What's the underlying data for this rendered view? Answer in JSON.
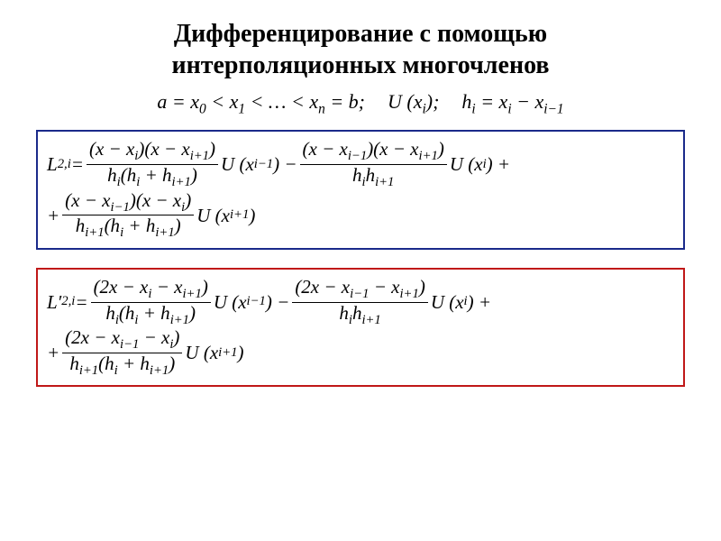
{
  "title": {
    "line1": "Дифференцирование с помощью",
    "line2": "интерполяционных многочленов",
    "fontsize": 28,
    "fontweight": "bold"
  },
  "header_eq": {
    "text_parts": {
      "a_eq": "a = x",
      "sub0": "0",
      "lt1": " < x",
      "sub1": "1",
      "lt_dots": " < … < x",
      "subn": "n",
      "eq_b": " = b;",
      "U": "U (x",
      "subi": "i",
      "close": ");",
      "h": "h",
      "h_sub": "i",
      "eq": " = x",
      "xi_sub": "i",
      "minus": " − x",
      "xim1_sub": "i−1"
    },
    "fontsize": 22
  },
  "box1": {
    "border_color": "#1a2a8a",
    "lhs": "L",
    "lhs_sub": "2,i",
    "eq": " = ",
    "term1": {
      "num_l": "(x − x",
      "num_l_sub": "i",
      "num_m": ")(x − x",
      "num_m_sub": "i+1",
      "num_r": ")",
      "den_l": "h",
      "den_l_sub": "i",
      "den_m": "(h",
      "den_m_sub": "i",
      "den_p": " + h",
      "den_p_sub": "i+1",
      "den_r": ")",
      "after": "U (x",
      "after_sub": "i−1",
      "after_r": ") − "
    },
    "term2": {
      "num_l": "(x − x",
      "num_l_sub": "i−1",
      "num_m": ")(x − x",
      "num_m_sub": "i+1",
      "num_r": ")",
      "den_l": "h",
      "den_l_sub": "i",
      "den_m": "h",
      "den_m_sub": "i+1",
      "after": "U (x",
      "after_sub": "i",
      "after_r": ") +"
    },
    "line2_lead": "+ ",
    "term3": {
      "num_l": "(x − x",
      "num_l_sub": "i−1",
      "num_m": ")(x − x",
      "num_m_sub": "i",
      "num_r": ")",
      "den_l": "h",
      "den_l_sub": "i+1",
      "den_m": "(h",
      "den_m_sub": "i",
      "den_p": " + h",
      "den_p_sub": "i+1",
      "den_r": ")",
      "after": "U (x",
      "after_sub": "i+1",
      "after_r": ")"
    }
  },
  "box2": {
    "border_color": "#c01818",
    "lhs": "L′",
    "lhs_sub": "2,i",
    "eq": " = ",
    "term1": {
      "num_l": "(2x − x",
      "num_l_sub": "i",
      "num_m": " − x",
      "num_m_sub": "i+1",
      "num_r": ")",
      "den_l": "h",
      "den_l_sub": "i",
      "den_m": "(h",
      "den_m_sub": "i",
      "den_p": " + h",
      "den_p_sub": "i+1",
      "den_r": ")",
      "after": "U (x",
      "after_sub": "i−1",
      "after_r": ") − "
    },
    "term2": {
      "num_l": "(2x − x",
      "num_l_sub": "i−1",
      "num_m": " − x",
      "num_m_sub": "i+1",
      "num_r": ")",
      "den_l": "h",
      "den_l_sub": "i",
      "den_m": "h",
      "den_m_sub": "i+1",
      "after": "U (x",
      "after_sub": "i",
      "after_r": ") +"
    },
    "line2_lead": "+ ",
    "term3": {
      "num_l": "(2x − x",
      "num_l_sub": "i−1",
      "num_m": " − x",
      "num_m_sub": "i",
      "num_r": ")",
      "den_l": "h",
      "den_l_sub": "i+1",
      "den_m": "(h",
      "den_m_sub": "i",
      "den_p": " + h",
      "den_p_sub": "i+1",
      "den_r": ")",
      "after": "U (x",
      "after_sub": "i+1",
      "after_r": ")"
    }
  },
  "colors": {
    "text": "#000000",
    "background": "#ffffff"
  }
}
